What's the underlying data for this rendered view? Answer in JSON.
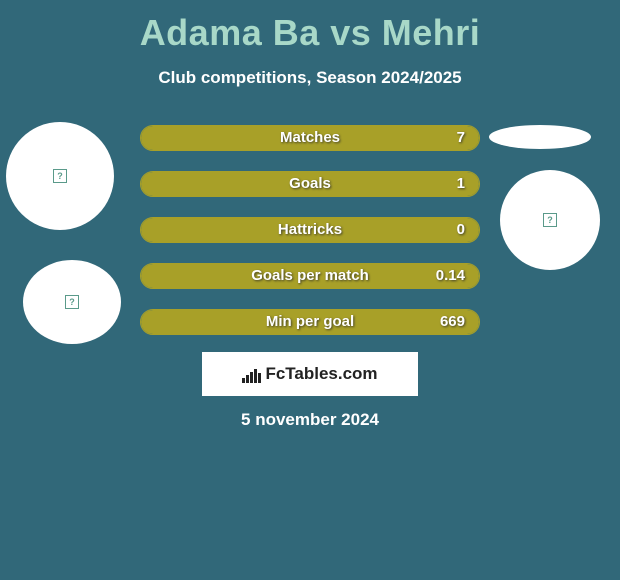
{
  "title": "Adama Ba vs Mehri",
  "subtitle": "Club competitions, Season 2024/2025",
  "date": "5 november 2024",
  "brand": "FcTables.com",
  "colors": {
    "background": "#316879",
    "title": "#a8d8c8",
    "pill_fill": "#a8a028",
    "pill_border": "#a8a028",
    "text": "#ffffff"
  },
  "stats": [
    {
      "label": "Matches",
      "value": "7",
      "fill_pct": 100
    },
    {
      "label": "Goals",
      "value": "1",
      "fill_pct": 100
    },
    {
      "label": "Hattricks",
      "value": "0",
      "fill_pct": 100
    },
    {
      "label": "Goals per match",
      "value": "0.14",
      "fill_pct": 100
    },
    {
      "label": "Min per goal",
      "value": "669",
      "fill_pct": 100
    }
  ],
  "avatars": [
    {
      "pos": "left-top"
    },
    {
      "pos": "left-bottom"
    },
    {
      "pos": "right-top-ellipse"
    },
    {
      "pos": "right-bottom"
    }
  ],
  "brand_bars": [
    5,
    8,
    11,
    14,
    10
  ]
}
